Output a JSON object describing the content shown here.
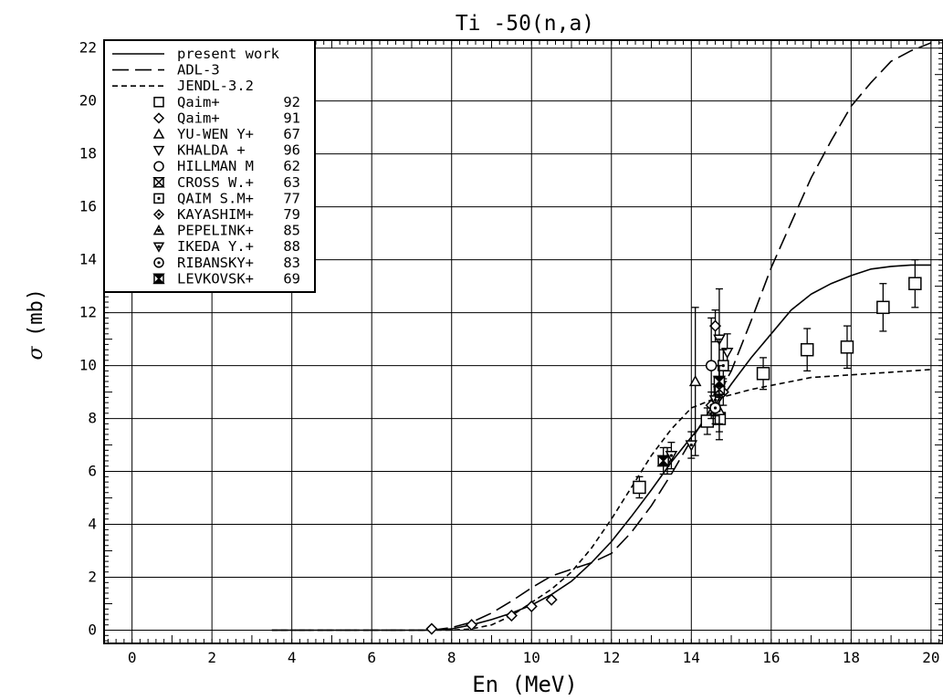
{
  "chart_data": {
    "type": "line",
    "title": "Ti  -50(n,a)",
    "xlabel": "En  (MeV)",
    "ylabel_symbol": "σ",
    "ylabel_unit": "(mb)",
    "xlim": [
      -0.7,
      20.3
    ],
    "ylim": [
      -0.5,
      22.3
    ],
    "xticks": [
      0,
      2,
      4,
      6,
      8,
      10,
      12,
      14,
      16,
      18,
      20
    ],
    "yticks": [
      0,
      2,
      4,
      6,
      8,
      10,
      12,
      14,
      16,
      18,
      20,
      22
    ],
    "xtick_labels": [
      "0",
      "2",
      "4",
      "6",
      "8",
      "10",
      "12",
      "14",
      "16",
      "18",
      "20"
    ],
    "ytick_labels": [
      "0",
      "2",
      "4",
      "6",
      "8",
      "10",
      "12",
      "14",
      "16",
      "18",
      "20",
      "22"
    ],
    "grid": true,
    "legend_position": "top-left",
    "curves": [
      {
        "name": "present work",
        "dash": "solid",
        "x": [
          3.5,
          7.5,
          8,
          8.5,
          9,
          9.5,
          10,
          10.5,
          11,
          11.5,
          12,
          12.5,
          13,
          13.5,
          14,
          14.5,
          15,
          15.5,
          16,
          16.5,
          17,
          17.5,
          18,
          18.5,
          19,
          19.5,
          20
        ],
        "y": [
          0,
          0,
          0.05,
          0.2,
          0.4,
          0.65,
          0.95,
          1.35,
          1.85,
          2.55,
          3.35,
          4.3,
          5.3,
          6.35,
          7.3,
          8.2,
          9.3,
          10.3,
          11.2,
          12.1,
          12.7,
          13.1,
          13.4,
          13.65,
          13.75,
          13.8,
          13.8
        ]
      },
      {
        "name": "ADL-3",
        "dash": "long-dash",
        "x": [
          3.5,
          7.5,
          8,
          8.5,
          9,
          9.5,
          10,
          10.5,
          11,
          11.5,
          12,
          12.5,
          13,
          13.5,
          14,
          14.5,
          15,
          15.5,
          16,
          16.5,
          17,
          17.5,
          18,
          18.5,
          19,
          19.5,
          20
        ],
        "y": [
          0,
          0,
          0.1,
          0.3,
          0.65,
          1.1,
          1.6,
          2.05,
          2.3,
          2.55,
          2.9,
          3.7,
          4.7,
          5.9,
          7.2,
          8.4,
          9.8,
          11.7,
          13.7,
          15.4,
          17.1,
          18.5,
          19.8,
          20.7,
          21.5,
          21.9,
          22.2
        ]
      },
      {
        "name": "JENDL-3.2",
        "dash": "short-dash",
        "x": [
          3.5,
          7.5,
          8,
          8.5,
          9,
          9.5,
          10,
          10.5,
          11,
          11.5,
          12,
          12.5,
          13,
          13.5,
          14,
          14.5,
          15,
          15.5,
          16,
          16.5,
          17,
          17.5,
          18,
          18.5,
          19,
          19.5,
          20
        ],
        "y": [
          0,
          0,
          0,
          0.05,
          0.2,
          0.55,
          1.05,
          1.55,
          2.2,
          3.1,
          4.2,
          5.4,
          6.6,
          7.6,
          8.4,
          8.7,
          8.9,
          9.1,
          9.25,
          9.4,
          9.55,
          9.6,
          9.65,
          9.7,
          9.75,
          9.8,
          9.85
        ]
      }
    ],
    "series": [
      {
        "name": "Qaim+",
        "year": "92",
        "marker": "square",
        "points": [
          {
            "x": 12.7,
            "y": 5.4,
            "err": 0.4
          },
          {
            "x": 14.4,
            "y": 7.9,
            "err": 0.5
          },
          {
            "x": 14.7,
            "y": 8.0,
            "err": 0.5
          },
          {
            "x": 15.8,
            "y": 9.7,
            "err": 0.6
          },
          {
            "x": 16.9,
            "y": 10.6,
            "err": 0.8
          },
          {
            "x": 17.9,
            "y": 10.7,
            "err": 0.8
          },
          {
            "x": 18.8,
            "y": 12.2,
            "err": 0.9
          },
          {
            "x": 19.6,
            "y": 13.1,
            "err": 0.9
          }
        ]
      },
      {
        "name": "Qaim+",
        "year": "91",
        "marker": "diamond",
        "points": [
          {
            "x": 7.5,
            "y": 0.05,
            "err": 0
          },
          {
            "x": 8.5,
            "y": 0.2,
            "err": 0
          },
          {
            "x": 9.5,
            "y": 0.55,
            "err": 0
          },
          {
            "x": 10.0,
            "y": 0.9,
            "err": 0
          },
          {
            "x": 10.5,
            "y": 1.15,
            "err": 0
          },
          {
            "x": 14.6,
            "y": 11.5,
            "err": 0.6
          },
          {
            "x": 14.8,
            "y": 9.0,
            "err": 0.5
          }
        ]
      },
      {
        "name": "YU-WEN Y+",
        "year": "67",
        "marker": "triangle-up",
        "points": [
          {
            "x": 14.1,
            "y": 9.4,
            "err": 2.8
          }
        ]
      },
      {
        "name": "KHALDA +",
        "year": "96",
        "marker": "triangle-down",
        "points": [
          {
            "x": 14.7,
            "y": 11.0,
            "err": 1.9
          },
          {
            "x": 14.9,
            "y": 10.5,
            "err": 0.7
          }
        ]
      },
      {
        "name": "HILLMAN M",
        "year": "62",
        "marker": "circle",
        "points": [
          {
            "x": 14.5,
            "y": 10.0,
            "err": 1.8
          }
        ]
      },
      {
        "name": "CROSS W.+",
        "year": "63",
        "marker": "hourglass-square",
        "points": [
          {
            "x": 14.7,
            "y": 9.1,
            "err": 1.9
          }
        ]
      },
      {
        "name": "QAIM S.M+",
        "year": "77",
        "marker": "dot-square",
        "points": [
          {
            "x": 14.8,
            "y": 10.0,
            "err": 0.6
          }
        ]
      },
      {
        "name": "KAYASHIM+",
        "year": "79",
        "marker": "dot-diamond",
        "points": [
          {
            "x": 14.5,
            "y": 8.5,
            "err": 0.5
          }
        ]
      },
      {
        "name": "PEPELINK+",
        "year": "85",
        "marker": "dot-triangle-up",
        "points": [
          {
            "x": 14.7,
            "y": 8.3,
            "err": 0.5
          }
        ]
      },
      {
        "name": "IKEDA Y.+",
        "year": "88",
        "marker": "dot-triangle-down",
        "points": [
          {
            "x": 13.4,
            "y": 6.4,
            "err": 0.5
          },
          {
            "x": 13.5,
            "y": 6.6,
            "err": 0.5
          },
          {
            "x": 14.0,
            "y": 7.0,
            "err": 0.5
          },
          {
            "x": 14.6,
            "y": 8.7,
            "err": 0.6
          },
          {
            "x": 14.7,
            "y": 9.4,
            "err": 0.6
          }
        ]
      },
      {
        "name": "RIBANSKY+",
        "year": "83",
        "marker": "dot-circle",
        "points": [
          {
            "x": 14.6,
            "y": 8.4,
            "err": 0.6
          }
        ]
      },
      {
        "name": "LEVKOVSK+",
        "year": "69",
        "marker": "hourglass-square-bold",
        "points": [
          {
            "x": 13.3,
            "y": 6.4,
            "err": 0.5
          },
          {
            "x": 14.7,
            "y": 9.4,
            "err": 0.6
          }
        ]
      }
    ]
  }
}
